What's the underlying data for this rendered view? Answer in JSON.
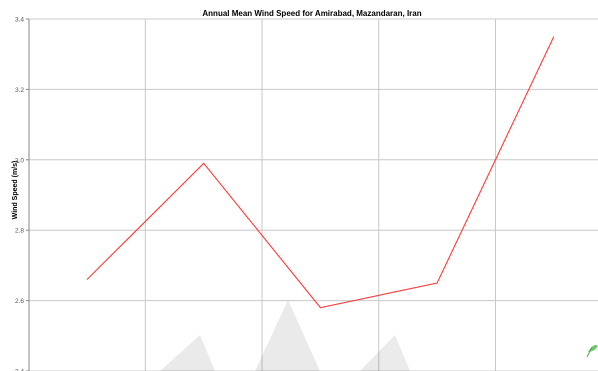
{
  "chart_data": {
    "type": "line",
    "title": "Annual Mean Wind Speed for Amirabad, Mazandaran, Iran",
    "xlabel": "",
    "ylabel": "Wind Speed (m/s)",
    "ylim": [
      2.4,
      3.4
    ],
    "yticks": [
      "2.4",
      "2.6",
      "2.8",
      "3.0",
      "3.2",
      "3.4"
    ],
    "grid": true,
    "x_count": 5,
    "series": [
      {
        "color": "#ff3b3b",
        "values": [
          2.66,
          2.99,
          2.58,
          2.65,
          3.35
        ]
      }
    ]
  }
}
